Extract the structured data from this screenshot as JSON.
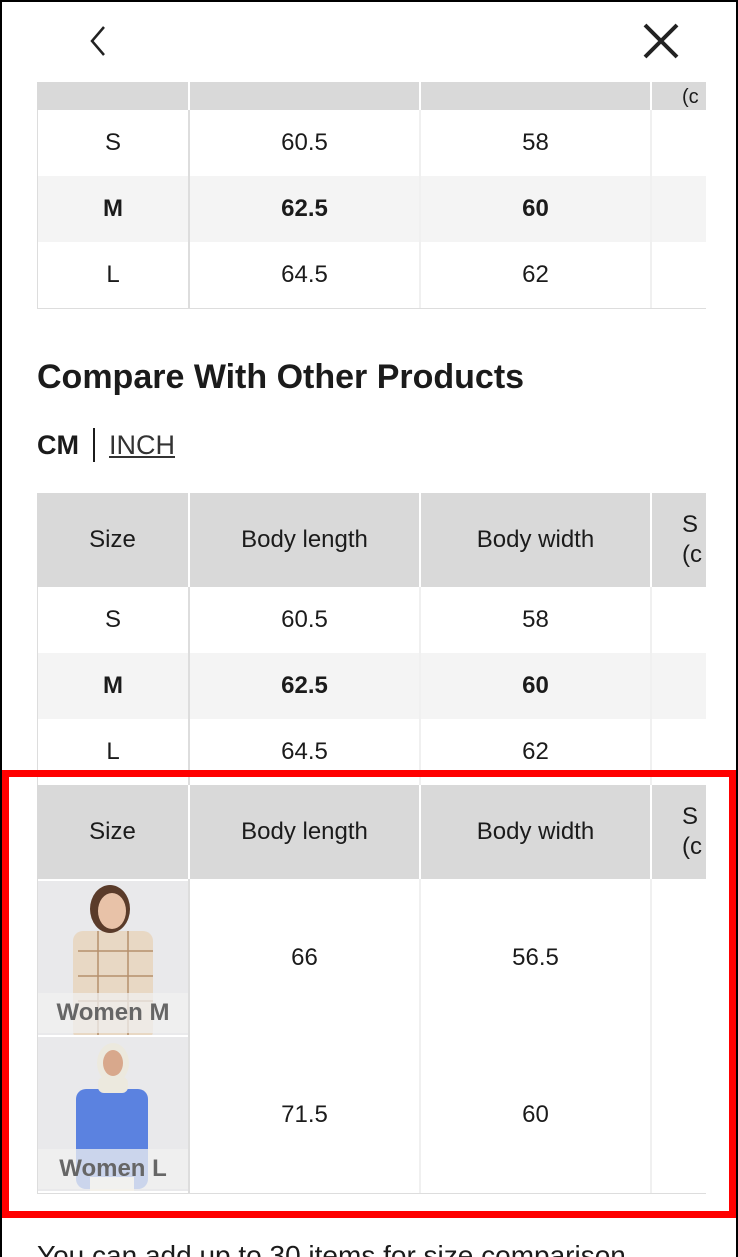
{
  "nav": {
    "back_icon": "chevron-left-icon",
    "close_icon": "close-x-icon"
  },
  "size_table": {
    "header_partial": "(c",
    "rows": [
      {
        "size": "S",
        "body_length": "60.5",
        "body_width": "58",
        "highlight": false
      },
      {
        "size": "M",
        "body_length": "62.5",
        "body_width": "60",
        "highlight": true
      },
      {
        "size": "L",
        "body_length": "64.5",
        "body_width": "62",
        "highlight": false
      }
    ]
  },
  "compare": {
    "title": "Compare With Other Products",
    "unit_cm": "CM",
    "unit_inch": "INCH",
    "headers": [
      "Size",
      "Body length",
      "Body width",
      "S",
      "(c"
    ],
    "rows": [
      {
        "size": "S",
        "body_length": "60.5",
        "body_width": "58"
      },
      {
        "size": "M",
        "body_length": "62.5",
        "body_width": "60"
      },
      {
        "size": "L",
        "body_length": "64.5",
        "body_width": "62"
      }
    ],
    "products": [
      {
        "label": "Women M",
        "body_length": "66",
        "body_width": "56.5",
        "shirt_color": "#e8d8c4"
      },
      {
        "label": "Women L",
        "body_length": "71.5",
        "body_width": "60",
        "shirt_color": "#5b82e0"
      }
    ]
  },
  "footer_text": "You can add up to 30 items for size comparison",
  "highlight_color": "#ff0000"
}
